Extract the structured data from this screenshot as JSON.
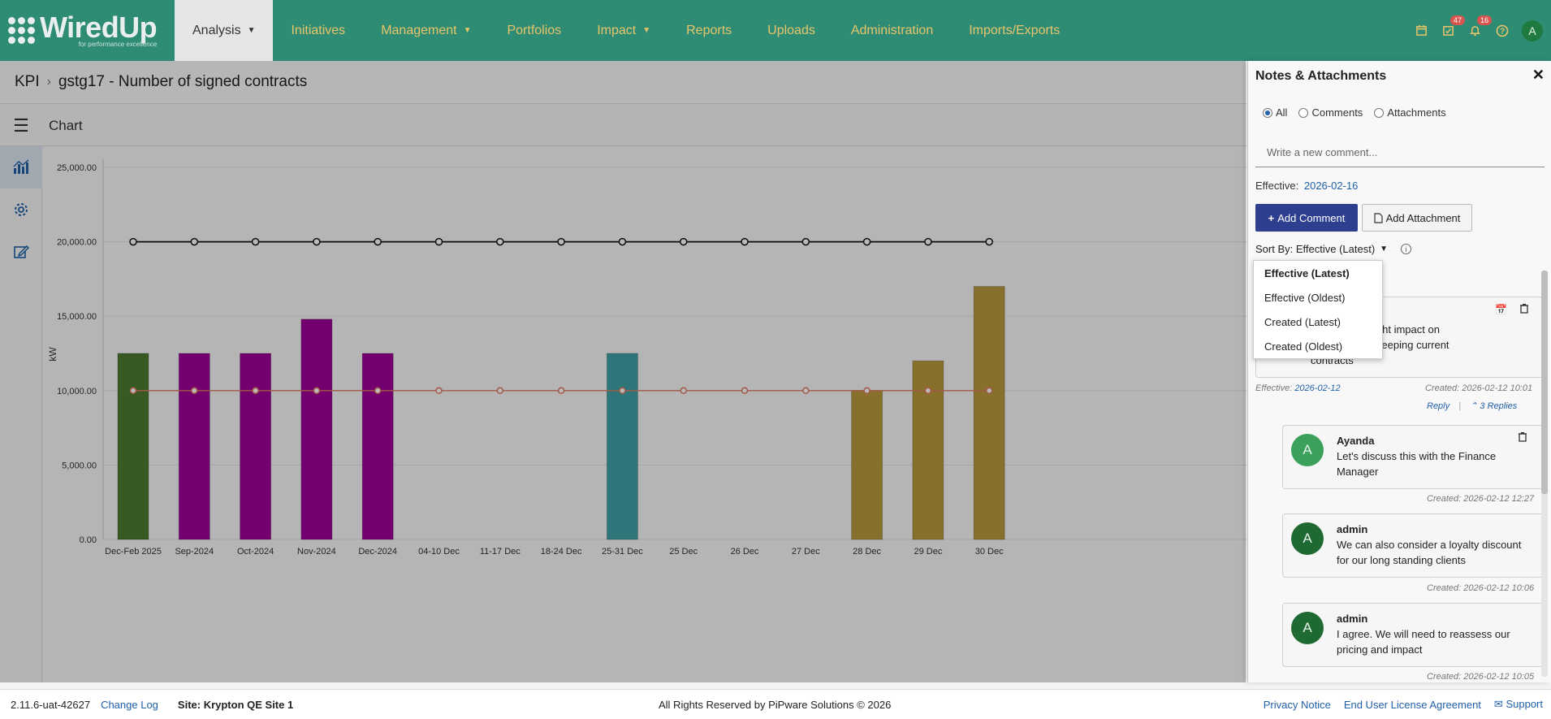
{
  "app": {
    "logo_main": "WiredUp",
    "logo_sub": "for performance excellence"
  },
  "nav": {
    "items": [
      {
        "label": "Analysis",
        "dropdown": true,
        "active": true
      },
      {
        "label": "Initiatives",
        "dropdown": false,
        "active": false
      },
      {
        "label": "Management",
        "dropdown": true,
        "active": false
      },
      {
        "label": "Portfolios",
        "dropdown": false,
        "active": false
      },
      {
        "label": "Impact",
        "dropdown": true,
        "active": false
      },
      {
        "label": "Reports",
        "dropdown": false,
        "active": false
      },
      {
        "label": "Uploads",
        "dropdown": false,
        "active": false
      },
      {
        "label": "Administration",
        "dropdown": false,
        "active": false
      },
      {
        "label": "Imports/Exports",
        "dropdown": false,
        "active": false
      }
    ],
    "tasks_badge": "47",
    "notifications_badge": "16",
    "user_initial": "A"
  },
  "breadcrumb": {
    "root": "KPI",
    "current": "gstg17 - Number of signed contracts"
  },
  "toolbar": {
    "title": "Chart"
  },
  "chart_data": {
    "type": "bar",
    "ylabel": "kW",
    "ylim": [
      0,
      25000
    ],
    "yticks": [
      "0.00",
      "5,000.00",
      "10,000.00",
      "15,000.00",
      "20,000.00",
      "25,000.00"
    ],
    "categories": [
      "Dec-Feb 2025",
      "Sep-2024",
      "Oct-2024",
      "Nov-2024",
      "Dec-2024",
      "04-10 Dec",
      "11-17 Dec",
      "18-24 Dec",
      "25-31 Dec",
      "25 Dec",
      "26 Dec",
      "27 Dec",
      "28 Dec",
      "29 Dec",
      "30 Dec"
    ],
    "series": [
      {
        "kind": "bar",
        "values": [
          12500,
          12500,
          12500,
          14800,
          12500,
          null,
          null,
          null,
          12500,
          null,
          null,
          null,
          10000,
          12000,
          17000
        ],
        "colors": [
          "#4d7a2f",
          "#a0009a",
          "#a0009a",
          "#a0009a",
          "#a0009a",
          null,
          null,
          null,
          "#3fa2a6",
          null,
          null,
          null,
          "#b89a3c",
          "#b89a3c",
          "#b89a3c"
        ]
      },
      {
        "kind": "line",
        "color": "#111111",
        "values": [
          20000,
          20000,
          20000,
          20000,
          20000,
          20000,
          20000,
          20000,
          20000,
          20000,
          20000,
          20000,
          20000,
          20000,
          20000
        ]
      },
      {
        "kind": "line",
        "color": "#e07a5f",
        "values": [
          10000,
          10000,
          10000,
          10000,
          10000,
          10000,
          10000,
          10000,
          10000,
          10000,
          10000,
          10000,
          10000,
          10000,
          10000
        ]
      }
    ],
    "grid": true
  },
  "panel": {
    "title": "Notes & Attachments",
    "filters": [
      "All",
      "Comments",
      "Attachments"
    ],
    "selected_filter": "All",
    "comment_placeholder": "Write a new comment...",
    "effective_label": "Effective:",
    "effective_date": "2026-02-16",
    "add_comment_label": "Add Comment",
    "add_attachment_label": "Add Attachment",
    "sort_label": "Sort By: Effective (Latest)",
    "sort_options": [
      "Effective (Latest)",
      "Effective (Oldest)",
      "Created (Latest)",
      "Created (Oldest)"
    ],
    "main_comment": {
      "text_line1": "tract prices might impact on",
      "text_line2": "signed or risk keeping current",
      "text_line3": "contracts",
      "effective_label": "Effective:",
      "effective_date": "2026-02-12",
      "created": "Created: 2026-02-12 10:01",
      "reply_label": "Reply",
      "replies_label": "3 Replies"
    },
    "replies": [
      {
        "author": "Ayanda",
        "initial": "A",
        "text": "Let's discuss this with the Finance Manager",
        "created": "Created: 2026-02-12 12:27"
      },
      {
        "author": "admin",
        "initial": "A",
        "text": "We can also consider a loyalty discount for our long standing clients",
        "created": "Created: 2026-02-12 10:06"
      },
      {
        "author": "admin",
        "initial": "A",
        "text": "I agree. We will need to reassess our pricing and impact",
        "created": "Created: 2026-02-12 10:05"
      }
    ]
  },
  "footer": {
    "version": "2.11.6-uat-42627",
    "change_log": "Change Log",
    "site": "Site: Krypton QE Site 1",
    "copyright": "All Rights Reserved by PiPware Solutions © 2026",
    "privacy": "Privacy Notice",
    "eula": "End User License Agreement",
    "support": "Support"
  }
}
